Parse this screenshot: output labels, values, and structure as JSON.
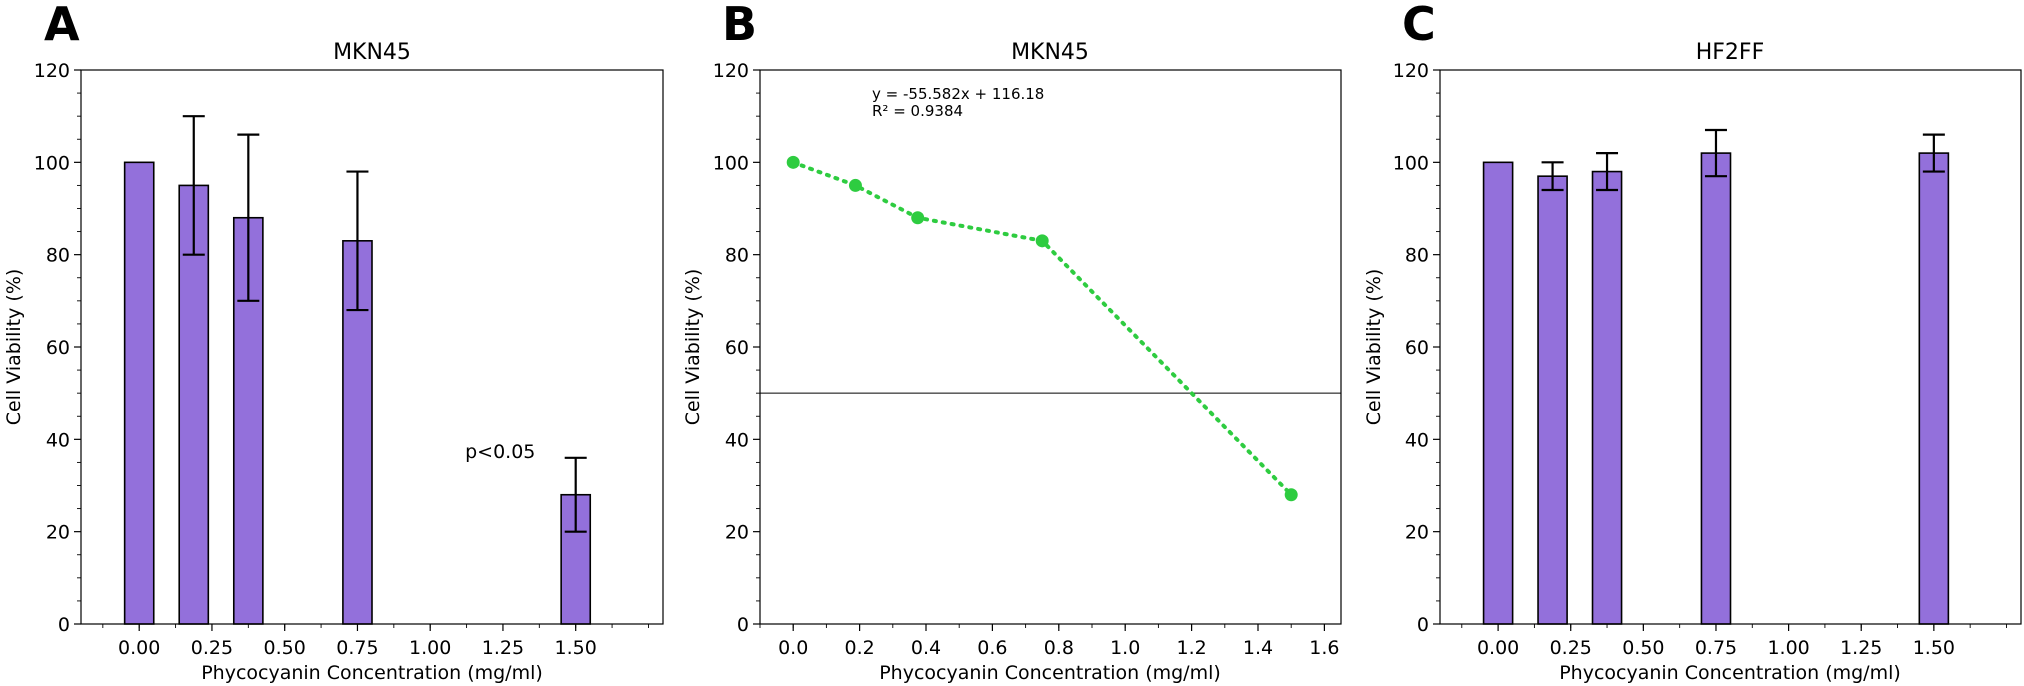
{
  "chart_data": [
    {
      "panel": "A",
      "type": "bar",
      "title": "MKN45",
      "xlabel": "Phycocyanin Concentration (mg/ml)",
      "ylabel": "Cell Viability (%)",
      "xlim": [
        -0.2,
        1.8
      ],
      "ylim": [
        0,
        120
      ],
      "xticks": [
        0.0,
        0.25,
        0.5,
        0.75,
        1.0,
        1.25,
        1.5
      ],
      "xtick_labels": [
        "0.00",
        "0.25",
        "0.50",
        "0.75",
        "1.00",
        "1.25",
        "1.50"
      ],
      "yticks": [
        0,
        20,
        40,
        60,
        80,
        100,
        120
      ],
      "ytick_labels": [
        "0",
        "20",
        "40",
        "60",
        "80",
        "100",
        "120"
      ],
      "bar_width": 0.1,
      "x": [
        0.0,
        0.1875,
        0.375,
        0.75,
        1.5
      ],
      "values": [
        100,
        95,
        88,
        83,
        28
      ],
      "errors": [
        0,
        15,
        18,
        15,
        8
      ],
      "annotation": {
        "text": "p<0.05",
        "x": 1.12,
        "y": 36
      },
      "color": "#9370DB"
    },
    {
      "panel": "B",
      "type": "line",
      "title": "MKN45",
      "xlabel": "Phycocyanin Concentration (mg/ml)",
      "ylabel": "Cell Viability (%)",
      "xlim": [
        -0.1,
        1.65
      ],
      "ylim": [
        0,
        120
      ],
      "xticks": [
        0.0,
        0.2,
        0.4,
        0.6,
        0.8,
        1.0,
        1.2,
        1.4,
        1.6
      ],
      "xtick_labels": [
        "0.0",
        "0.2",
        "0.4",
        "0.6",
        "0.8",
        "1.0",
        "1.2",
        "1.4",
        "1.6"
      ],
      "yticks": [
        0,
        20,
        40,
        60,
        80,
        100,
        120
      ],
      "ytick_labels": [
        "0",
        "20",
        "40",
        "60",
        "80",
        "100",
        "120"
      ],
      "x": [
        0.0,
        0.1875,
        0.375,
        0.75,
        1.5
      ],
      "values": [
        100,
        95,
        88,
        83,
        28
      ],
      "hline": 50,
      "equation": "y = -55.582x + 116.18",
      "r_squared": "R² = 0.9384",
      "color": "#2ECC40"
    },
    {
      "panel": "C",
      "type": "bar",
      "title": "HF2FF",
      "xlabel": "Phycocyanin Concentration (mg/ml)",
      "ylabel": "Cell Viability (%)",
      "xlim": [
        -0.2,
        1.8
      ],
      "ylim": [
        0,
        120
      ],
      "xticks": [
        0.0,
        0.25,
        0.5,
        0.75,
        1.0,
        1.25,
        1.5
      ],
      "xtick_labels": [
        "0.00",
        "0.25",
        "0.50",
        "0.75",
        "1.00",
        "1.25",
        "1.50"
      ],
      "yticks": [
        0,
        20,
        40,
        60,
        80,
        100,
        120
      ],
      "ytick_labels": [
        "0",
        "20",
        "40",
        "60",
        "80",
        "100",
        "120"
      ],
      "bar_width": 0.1,
      "x": [
        0.0,
        0.1875,
        0.375,
        0.75,
        1.5
      ],
      "values": [
        100,
        97,
        98,
        102,
        102
      ],
      "errors": [
        0,
        3,
        4,
        5,
        4
      ],
      "color": "#9370DB"
    }
  ]
}
